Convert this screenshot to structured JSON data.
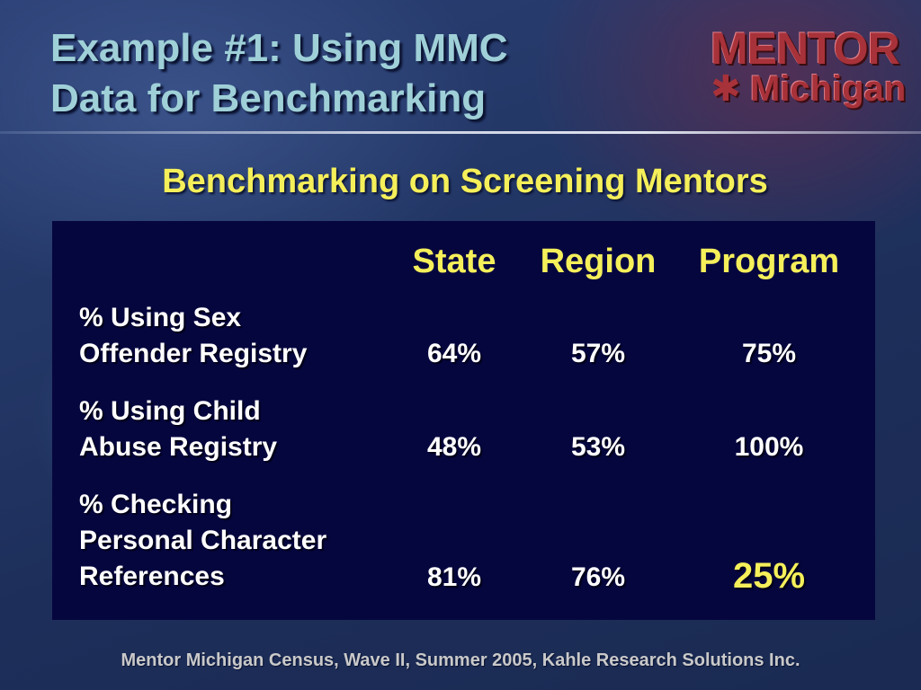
{
  "slide": {
    "title_line1": "Example #1: Using MMC",
    "title_line2": "Data for Benchmarking",
    "subtitle": "Benchmarking on Screening Mentors",
    "footer": "Mentor Michigan Census, Wave II, Summer 2005, Kahle Research Solutions Inc."
  },
  "logo": {
    "word": "MENTOR",
    "sub": "Michigan",
    "figure_char": "✱"
  },
  "table": {
    "headers": [
      "State",
      "Region",
      "Program"
    ],
    "rows": [
      {
        "label_lines": [
          "% Using Sex",
          "Offender Registry"
        ],
        "values": [
          "64%",
          "57%",
          "75%"
        ]
      },
      {
        "label_lines": [
          "% Using Child",
          "Abuse Registry"
        ],
        "values": [
          "48%",
          "53%",
          "100%"
        ]
      },
      {
        "label_lines": [
          "% Checking",
          "Personal Character",
          "References"
        ],
        "values": [
          "81%",
          "76%",
          "25%"
        ]
      }
    ]
  },
  "colors": {
    "title": "#9fd0d8",
    "accent_yellow": "#f5ef5a",
    "panel": "#06063f",
    "logo_red": "#a8323a"
  }
}
